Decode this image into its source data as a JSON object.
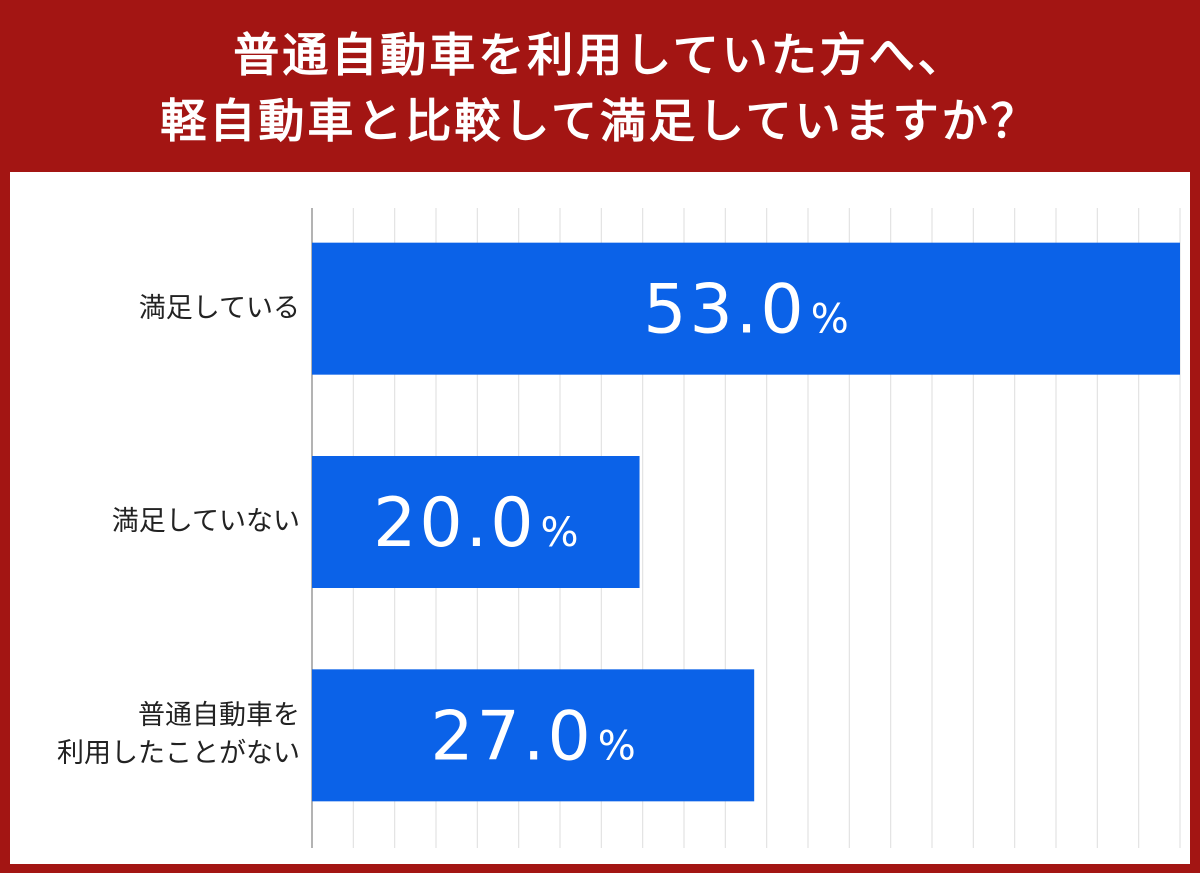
{
  "chart_data": {
    "type": "bar",
    "orientation": "horizontal",
    "title_lines": [
      "普通自動車を利用していた方へ、",
      "軽自動車と比較して満足していますか？"
    ],
    "categories": [
      {
        "lines": [
          "満足している"
        ]
      },
      {
        "lines": [
          "満足していない"
        ]
      },
      {
        "lines": [
          "普通自動車を",
          "利用したことがない"
        ]
      }
    ],
    "values": [
      53.0,
      20.0,
      27.0
    ],
    "value_labels": [
      "53.0",
      "20.0",
      "27.0"
    ],
    "unit": "%",
    "xlim": [
      0,
      53
    ],
    "grid": "vertical",
    "colors": {
      "bar": "#0b62e8",
      "header": "#a31513",
      "grid": "#e3e3e3",
      "axis": "#9a9a9a"
    }
  }
}
